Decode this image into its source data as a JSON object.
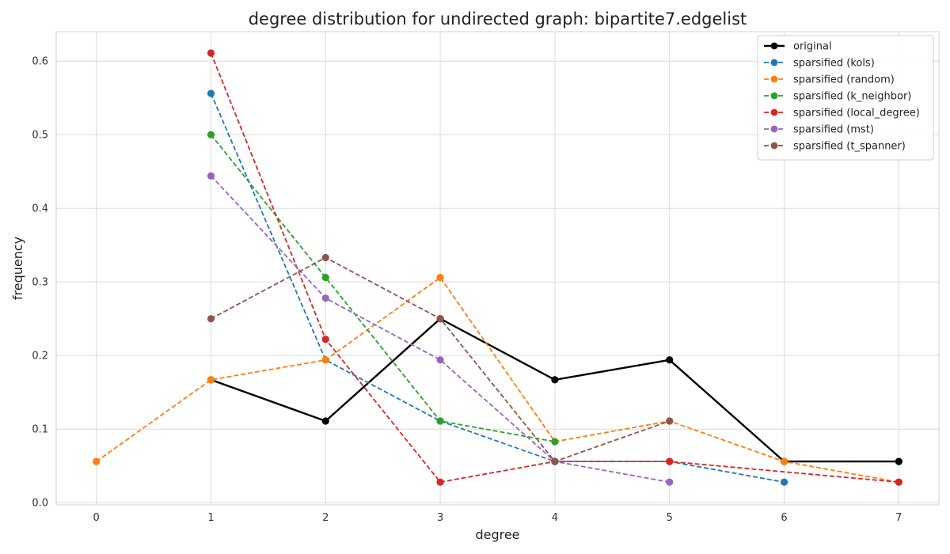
{
  "chart_data": {
    "type": "line",
    "title": "degree distribution for undirected graph: bipartite7.edgelist",
    "xlabel": "degree",
    "ylabel": "frequency",
    "xlim": [
      -0.35,
      7.35
    ],
    "ylim": [
      -0.003,
      0.64
    ],
    "x_ticks": [
      0,
      1,
      2,
      3,
      4,
      5,
      6,
      7
    ],
    "y_ticks": [
      0.0,
      0.1,
      0.2,
      0.3,
      0.4,
      0.5,
      0.6
    ],
    "y_tick_labels": [
      "0.0",
      "0.1",
      "0.2",
      "0.3",
      "0.4",
      "0.5",
      "0.6"
    ],
    "grid": true,
    "legend_position": "top-right",
    "series": [
      {
        "name": "original",
        "color": "#000000",
        "style": "solid",
        "x": [
          1,
          2,
          3,
          4,
          5,
          6,
          7
        ],
        "y": [
          0.167,
          0.111,
          0.25,
          0.167,
          0.194,
          0.056,
          0.056
        ]
      },
      {
        "name": "sparsified (kols)",
        "color": "#1f77b4",
        "style": "dashed",
        "x": [
          1,
          2,
          3,
          4,
          5,
          6
        ],
        "y": [
          0.556,
          0.194,
          0.111,
          0.056,
          0.056,
          0.028
        ]
      },
      {
        "name": "sparsified (random)",
        "color": "#ff7f0e",
        "style": "dashed",
        "x": [
          0,
          1,
          2,
          3,
          4,
          5,
          6,
          7
        ],
        "y": [
          0.056,
          0.167,
          0.194,
          0.306,
          0.083,
          0.111,
          0.056,
          0.028
        ]
      },
      {
        "name": "sparsified (k_neighbor)",
        "color": "#2ca02c",
        "style": "dashed",
        "x": [
          1,
          2,
          3,
          4
        ],
        "y": [
          0.5,
          0.306,
          0.111,
          0.083
        ]
      },
      {
        "name": "sparsified (local_degree)",
        "color": "#d62728",
        "style": "dashed",
        "x": [
          1,
          2,
          3,
          4,
          5,
          7
        ],
        "y": [
          0.611,
          0.222,
          0.028,
          0.056,
          0.056,
          0.028
        ]
      },
      {
        "name": "sparsified (mst)",
        "color": "#9467bd",
        "style": "dashed",
        "x": [
          1,
          2,
          3,
          4,
          5
        ],
        "y": [
          0.444,
          0.278,
          0.194,
          0.056,
          0.028
        ]
      },
      {
        "name": "sparsified (t_spanner)",
        "color": "#8c564b",
        "style": "dashed",
        "x": [
          1,
          2,
          3,
          4,
          5
        ],
        "y": [
          0.25,
          0.333,
          0.25,
          0.056,
          0.111
        ]
      }
    ]
  }
}
